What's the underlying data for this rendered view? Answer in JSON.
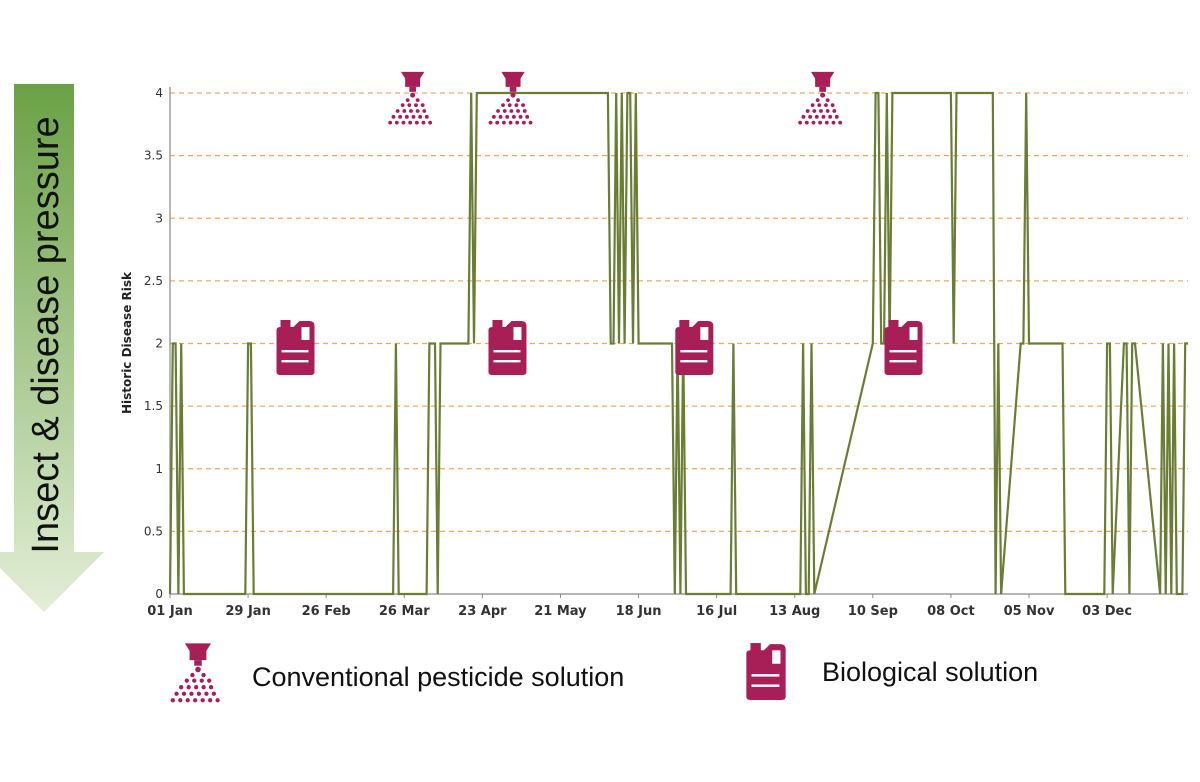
{
  "side_arrow": {
    "label": "Insect & disease pressure",
    "color_top": "#6aa145",
    "color_bottom": "#e3eed7"
  },
  "legend": {
    "conventional": {
      "label": "Conventional pesticide solution",
      "icon": "spray-nozzle-icon"
    },
    "biological": {
      "label": "Biological solution",
      "icon": "jerrycan-icon"
    }
  },
  "chart_data": {
    "type": "line",
    "ylabel": "Historic Disease Risk",
    "xlabel": "",
    "ylim": [
      0,
      4
    ],
    "xlim": [
      0,
      365
    ],
    "y_ticks": [
      0,
      0.5,
      1,
      1.5,
      2,
      2.5,
      3,
      3.5,
      4
    ],
    "x_ticks": [
      {
        "day": 0,
        "label": "01 Jan"
      },
      {
        "day": 28,
        "label": "29 Jan"
      },
      {
        "day": 56,
        "label": "26 Feb"
      },
      {
        "day": 84,
        "label": "26 Mar"
      },
      {
        "day": 112,
        "label": "23 Apr"
      },
      {
        "day": 140,
        "label": "21 May"
      },
      {
        "day": 168,
        "label": "18 Jun"
      },
      {
        "day": 196,
        "label": "16 Jul"
      },
      {
        "day": 224,
        "label": "13 Aug"
      },
      {
        "day": 252,
        "label": "10 Sep"
      },
      {
        "day": 280,
        "label": "08 Oct"
      },
      {
        "day": 308,
        "label": "05 Nov"
      },
      {
        "day": 336,
        "label": "03 Dec"
      }
    ],
    "grid": "horizontal dashed",
    "colors": {
      "line": "#6b7d35",
      "grid": "#f0a860",
      "icon": "#a81f58"
    },
    "series": [
      {
        "name": "Historic Disease Risk",
        "days": [
          0,
          1,
          2,
          3,
          4,
          5,
          27,
          28,
          29,
          30,
          80,
          81,
          82,
          92,
          93,
          94,
          95,
          96,
          97,
          107,
          108,
          109,
          110,
          111,
          157,
          158,
          159,
          160,
          161,
          162,
          163,
          164,
          165,
          166,
          167,
          168,
          180,
          181,
          182,
          183,
          184,
          185,
          186,
          201,
          202,
          203,
          226,
          227,
          228,
          229,
          230,
          231,
          252,
          253,
          254,
          255,
          256,
          257,
          258,
          259,
          280,
          281,
          282,
          283,
          295,
          296,
          297,
          298,
          305,
          306,
          307,
          308,
          309,
          310,
          320,
          321,
          322,
          335,
          336,
          337,
          338,
          342,
          343,
          344,
          345,
          346,
          355,
          356,
          357,
          358,
          359,
          360,
          361,
          362,
          363,
          364,
          365
        ],
        "values": [
          0,
          2,
          2,
          0,
          2,
          0,
          0,
          2,
          2,
          0,
          0,
          2,
          0,
          0,
          2,
          2,
          2,
          0,
          2,
          2,
          4,
          2,
          4,
          4,
          4,
          2,
          2,
          4,
          2,
          4,
          2,
          4,
          4,
          2,
          4,
          2,
          2,
          0,
          2,
          0,
          2,
          0,
          0,
          0,
          2,
          0,
          0,
          2,
          0,
          0,
          2,
          0,
          2,
          4,
          4,
          2,
          2,
          4,
          2,
          4,
          4,
          2,
          4,
          4,
          4,
          0,
          2,
          0,
          2,
          2,
          4,
          2,
          2,
          2,
          2,
          0,
          0,
          0,
          2,
          2,
          0,
          2,
          2,
          0,
          2,
          2,
          0,
          2,
          0,
          2,
          0,
          2,
          0,
          0,
          0,
          2,
          2
        ]
      }
    ],
    "treatments": [
      {
        "type": "conventional",
        "day": 87
      },
      {
        "type": "conventional",
        "day": 123
      },
      {
        "type": "conventional",
        "day": 234
      },
      {
        "type": "biological",
        "day": 45
      },
      {
        "type": "biological",
        "day": 121
      },
      {
        "type": "biological",
        "day": 188
      },
      {
        "type": "biological",
        "day": 263
      }
    ]
  }
}
